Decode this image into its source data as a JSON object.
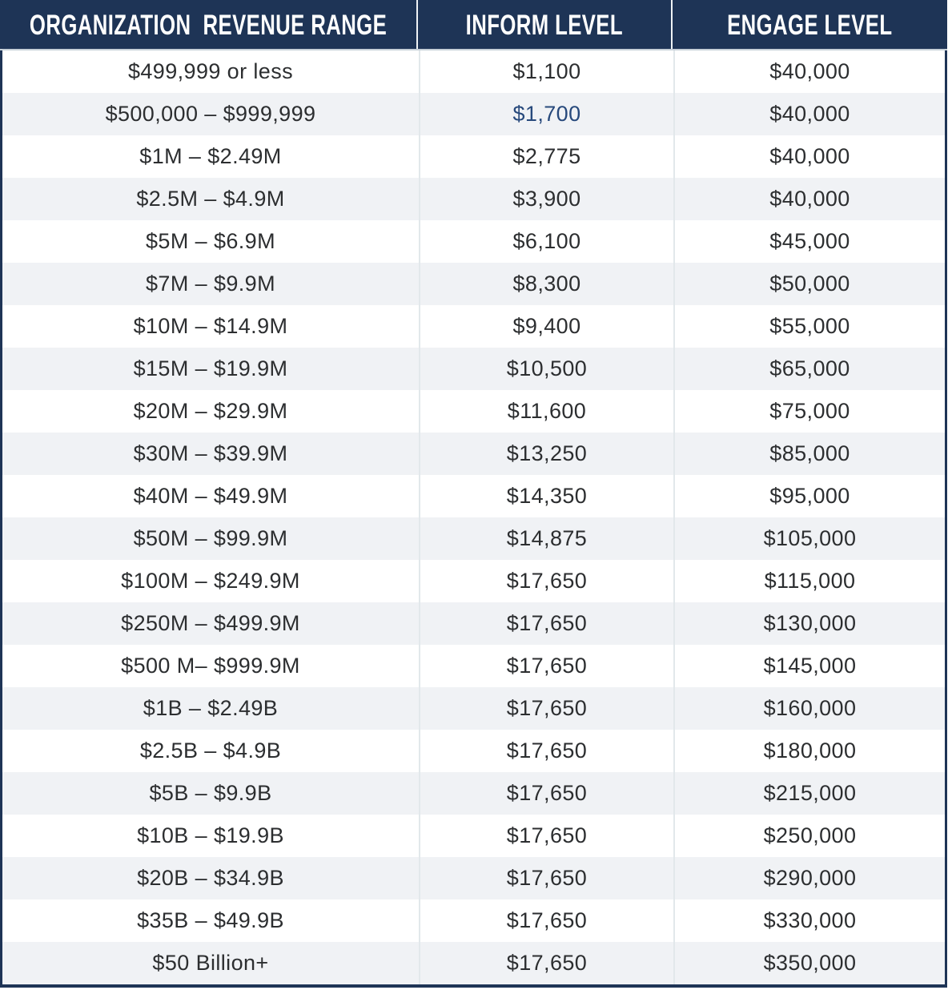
{
  "colors": {
    "header_bg": "#1e3456",
    "header_text": "#ffffff",
    "body_text": "#2c2e30",
    "highlight_text": "#27497c",
    "row_bg": "#ffffff",
    "row_alt_bg": "#f0f2f5",
    "outer_border": "#1e3456",
    "column_divider": "#e2e8eb",
    "header_divider": "#eef2f5",
    "header_bottom_divider": "#c7d0d8"
  },
  "chart_data": {
    "type": "table",
    "title": "Organization Revenue Range vs Inform Level and Engage Level dues",
    "columns": [
      "ORGANIZATION  REVENUE RANGE",
      "INFORM LEVEL",
      "ENGAGE LEVEL"
    ],
    "rows": [
      [
        "$499,999 or less",
        "$1,100",
        "$40,000"
      ],
      [
        "$500,000 – $999,999",
        "$1,700",
        "$40,000"
      ],
      [
        "$1M – $2.49M",
        "$2,775",
        "$40,000"
      ],
      [
        "$2.5M – $4.9M",
        "$3,900",
        "$40,000"
      ],
      [
        "$5M – $6.9M",
        "$6,100",
        "$45,000"
      ],
      [
        "$7M – $9.9M",
        "$8,300",
        "$50,000"
      ],
      [
        "$10M – $14.9M",
        "$9,400",
        "$55,000"
      ],
      [
        "$15M – $19.9M",
        "$10,500",
        "$65,000"
      ],
      [
        "$20M – $29.9M",
        "$11,600",
        "$75,000"
      ],
      [
        "$30M – $39.9M",
        "$13,250",
        "$85,000"
      ],
      [
        "$40M – $49.9M",
        "$14,350",
        "$95,000"
      ],
      [
        "$50M – $99.9M",
        "$14,875",
        "$105,000"
      ],
      [
        "$100M – $249.9M",
        "$17,650",
        "$115,000"
      ],
      [
        "$250M – $499.9M",
        "$17,650",
        "$130,000"
      ],
      [
        "$500 M– $999.9M",
        "$17,650",
        "$145,000"
      ],
      [
        "$1B – $2.49B",
        "$17,650",
        "$160,000"
      ],
      [
        "$2.5B – $4.9B",
        "$17,650",
        "$180,000"
      ],
      [
        "$5B – $9.9B",
        "$17,650",
        "$215,000"
      ],
      [
        "$10B – $19.9B",
        "$17,650",
        "$250,000"
      ],
      [
        "$20B – $34.9B",
        "$17,650",
        "$290,000"
      ],
      [
        "$35B – $49.9B",
        "$17,650",
        "$330,000"
      ],
      [
        "$50 Billion+",
        "$17,650",
        "$350,000"
      ]
    ],
    "highlight": {
      "row": 1,
      "col": 1,
      "color": "#27497c"
    },
    "layout": {
      "alternating_rows": true,
      "first_row_background": "#ffffff",
      "alignment": "center"
    }
  }
}
